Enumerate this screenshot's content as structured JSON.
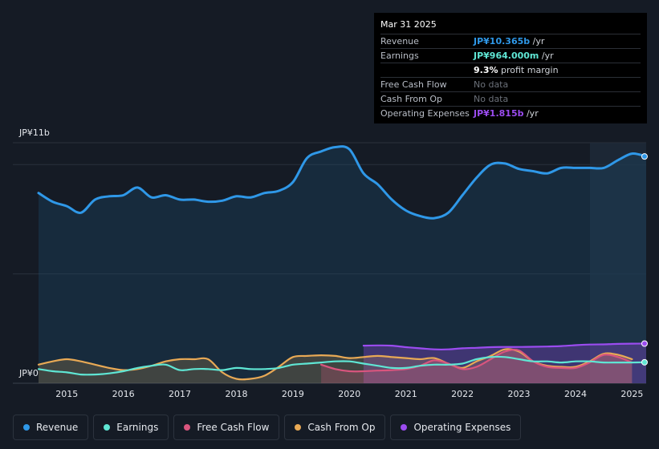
{
  "tooltip": {
    "date": "Mar 31 2025",
    "rows": [
      {
        "label": "Revenue",
        "value": "JP¥10.365b",
        "unit": " /yr",
        "color": "#2f98e8"
      },
      {
        "label": "Earnings",
        "value": "JP¥964.000m",
        "unit": " /yr",
        "color": "#5fe6d4"
      },
      {
        "label": "",
        "value": "9.3%",
        "unit": " profit margin",
        "color": "#ffffff"
      },
      {
        "label": "Free Cash Flow",
        "value": "No data",
        "unit": "",
        "color": "#6b7079"
      },
      {
        "label": "Cash From Op",
        "value": "No data",
        "unit": "",
        "color": "#6b7079"
      },
      {
        "label": "Operating Expenses",
        "value": "JP¥1.815b",
        "unit": " /yr",
        "color": "#9b4cf0"
      }
    ]
  },
  "legend": [
    {
      "label": "Revenue",
      "color": "#2f98e8"
    },
    {
      "label": "Earnings",
      "color": "#5fe6d4"
    },
    {
      "label": "Free Cash Flow",
      "color": "#d9557e"
    },
    {
      "label": "Cash From Op",
      "color": "#e8a955"
    },
    {
      "label": "Operating Expenses",
      "color": "#9b4cf0"
    }
  ],
  "chart_data": {
    "type": "line",
    "ylabel_top": "JP¥11b",
    "ylabel_bottom": "JP¥0",
    "ylim": [
      0,
      11
    ],
    "xlim": [
      2014.5,
      2025.25
    ],
    "x_ticks": [
      "2015",
      "2016",
      "2017",
      "2018",
      "2019",
      "2020",
      "2021",
      "2022",
      "2023",
      "2024",
      "2025"
    ],
    "series": [
      {
        "name": "Revenue",
        "color": "#2f98e8",
        "area": true,
        "x": [
          2014.5,
          2014.75,
          2015.0,
          2015.25,
          2015.5,
          2015.75,
          2016.0,
          2016.25,
          2016.5,
          2016.75,
          2017.0,
          2017.25,
          2017.5,
          2017.75,
          2018.0,
          2018.25,
          2018.5,
          2018.75,
          2019.0,
          2019.25,
          2019.5,
          2019.75,
          2020.0,
          2020.25,
          2020.5,
          2020.75,
          2021.0,
          2021.25,
          2021.5,
          2021.75,
          2022.0,
          2022.25,
          2022.5,
          2022.75,
          2023.0,
          2023.25,
          2023.5,
          2023.75,
          2024.0,
          2024.25,
          2024.5,
          2024.75,
          2025.0,
          2025.25
        ],
        "y": [
          8.7,
          8.3,
          8.1,
          7.8,
          8.4,
          8.55,
          8.6,
          8.95,
          8.5,
          8.6,
          8.4,
          8.4,
          8.3,
          8.35,
          8.55,
          8.5,
          8.7,
          8.8,
          9.2,
          10.3,
          10.6,
          10.8,
          10.7,
          9.6,
          9.1,
          8.4,
          7.9,
          7.65,
          7.55,
          7.8,
          8.6,
          9.4,
          10.0,
          10.05,
          9.8,
          9.7,
          9.6,
          9.85,
          9.85,
          9.85,
          9.85,
          10.2,
          10.5,
          10.37
        ]
      },
      {
        "name": "Earnings",
        "color": "#5fe6d4",
        "area": false,
        "x": [
          2014.5,
          2014.75,
          2015.0,
          2015.25,
          2015.5,
          2015.75,
          2016.0,
          2016.25,
          2016.5,
          2016.75,
          2017.0,
          2017.25,
          2017.5,
          2017.75,
          2018.0,
          2018.25,
          2018.5,
          2018.75,
          2019.0,
          2019.25,
          2019.5,
          2019.75,
          2020.0,
          2020.25,
          2020.5,
          2020.75,
          2021.0,
          2021.25,
          2021.5,
          2021.75,
          2022.0,
          2022.25,
          2022.5,
          2022.75,
          2023.0,
          2023.25,
          2023.5,
          2023.75,
          2024.0,
          2024.25,
          2024.5,
          2024.75,
          2025.0,
          2025.25
        ],
        "y": [
          0.65,
          0.55,
          0.5,
          0.4,
          0.4,
          0.45,
          0.55,
          0.7,
          0.8,
          0.85,
          0.6,
          0.65,
          0.65,
          0.6,
          0.7,
          0.65,
          0.65,
          0.7,
          0.85,
          0.9,
          0.95,
          1.0,
          1.0,
          0.9,
          0.8,
          0.7,
          0.7,
          0.8,
          0.85,
          0.85,
          0.9,
          1.1,
          1.2,
          1.2,
          1.1,
          1.0,
          1.0,
          0.95,
          1.0,
          1.0,
          0.95,
          0.95,
          0.95,
          0.96
        ]
      },
      {
        "name": "Free Cash Flow",
        "color": "#d9557e",
        "area": true,
        "x": [
          2019.5,
          2019.75,
          2020.0,
          2020.25,
          2020.5,
          2020.75,
          2021.0,
          2021.25,
          2021.5,
          2021.75,
          2022.0,
          2022.25,
          2022.5,
          2022.75,
          2023.0,
          2023.25,
          2023.5,
          2023.75,
          2024.0,
          2024.25,
          2024.5,
          2024.75,
          2025.0
        ],
        "y": [
          0.85,
          0.65,
          0.55,
          0.55,
          0.58,
          0.6,
          0.65,
          0.8,
          1.05,
          0.9,
          0.65,
          0.75,
          1.1,
          1.45,
          1.5,
          1.0,
          0.75,
          0.7,
          0.7,
          0.95,
          1.3,
          1.2,
          0.95
        ]
      },
      {
        "name": "Cash From Op",
        "color": "#e8a955",
        "area": true,
        "x": [
          2014.5,
          2014.75,
          2015.0,
          2015.25,
          2015.5,
          2015.75,
          2016.0,
          2016.25,
          2016.5,
          2016.75,
          2017.0,
          2017.25,
          2017.5,
          2017.75,
          2018.0,
          2018.25,
          2018.5,
          2018.75,
          2019.0,
          2019.25,
          2019.5,
          2019.75,
          2020.0,
          2020.25,
          2020.5,
          2020.75,
          2021.0,
          2021.25,
          2021.5,
          2021.75,
          2022.0,
          2022.25,
          2022.5,
          2022.75,
          2023.0,
          2023.25,
          2023.5,
          2023.75,
          2024.0,
          2024.25,
          2024.5,
          2024.75,
          2025.0
        ],
        "y": [
          0.85,
          1.0,
          1.1,
          1.0,
          0.85,
          0.7,
          0.6,
          0.65,
          0.8,
          1.0,
          1.1,
          1.1,
          1.1,
          0.5,
          0.2,
          0.2,
          0.35,
          0.75,
          1.2,
          1.25,
          1.28,
          1.25,
          1.15,
          1.2,
          1.25,
          1.2,
          1.15,
          1.1,
          1.15,
          0.9,
          0.7,
          1.0,
          1.25,
          1.55,
          1.45,
          1.0,
          0.8,
          0.75,
          0.75,
          1.0,
          1.35,
          1.3,
          1.1
        ]
      },
      {
        "name": "Operating Expenses",
        "color": "#9b4cf0",
        "area": true,
        "x": [
          2020.25,
          2020.5,
          2020.75,
          2021.0,
          2021.25,
          2021.5,
          2021.75,
          2022.0,
          2022.25,
          2022.5,
          2022.75,
          2023.0,
          2023.25,
          2023.5,
          2023.75,
          2024.0,
          2024.25,
          2024.5,
          2024.75,
          2025.0,
          2025.25
        ],
        "y": [
          1.72,
          1.73,
          1.72,
          1.65,
          1.6,
          1.55,
          1.55,
          1.6,
          1.62,
          1.65,
          1.66,
          1.66,
          1.67,
          1.68,
          1.7,
          1.74,
          1.77,
          1.78,
          1.8,
          1.81,
          1.815
        ]
      }
    ]
  }
}
